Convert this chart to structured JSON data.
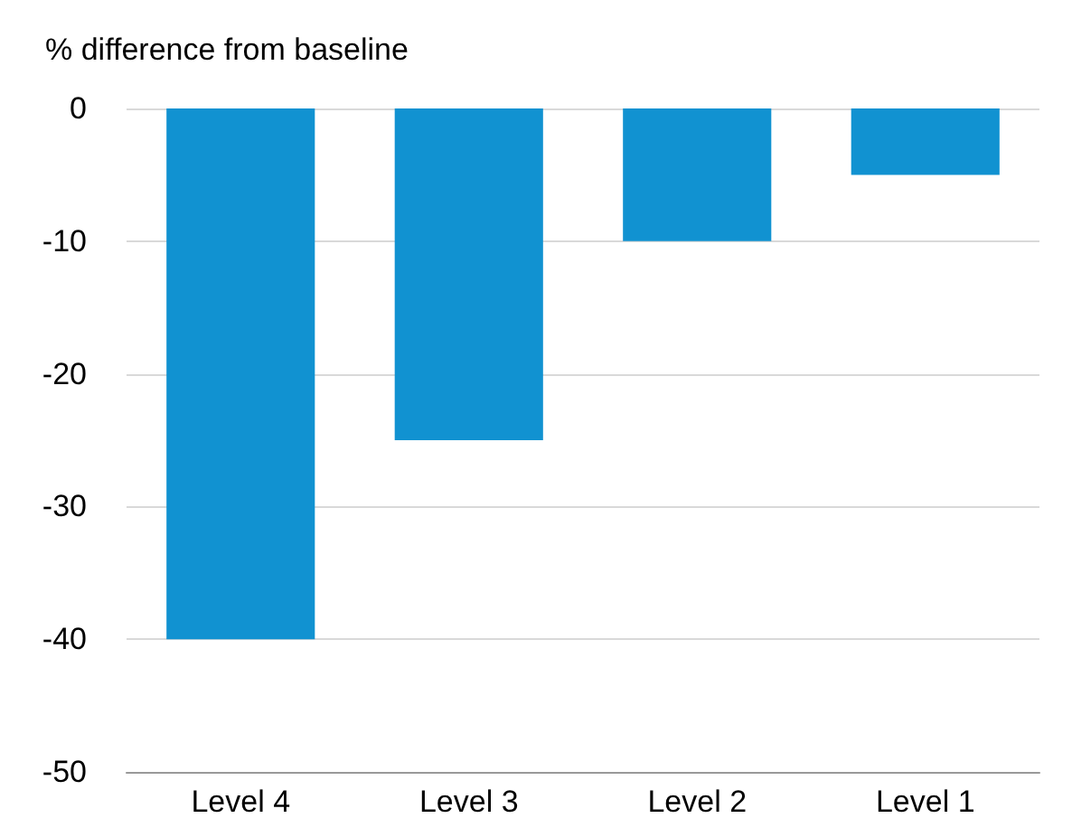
{
  "chart_data": {
    "type": "bar",
    "ylabel": "% difference from baseline",
    "categories": [
      "Level 4",
      "Level 3",
      "Level 2",
      "Level 1"
    ],
    "values": [
      -40,
      -25,
      -10,
      -5
    ],
    "color": "#1192d1",
    "ylim": [
      -50,
      0
    ],
    "yticks": [
      -50,
      -40,
      -30,
      -20,
      -10,
      0
    ],
    "grid": "y"
  }
}
